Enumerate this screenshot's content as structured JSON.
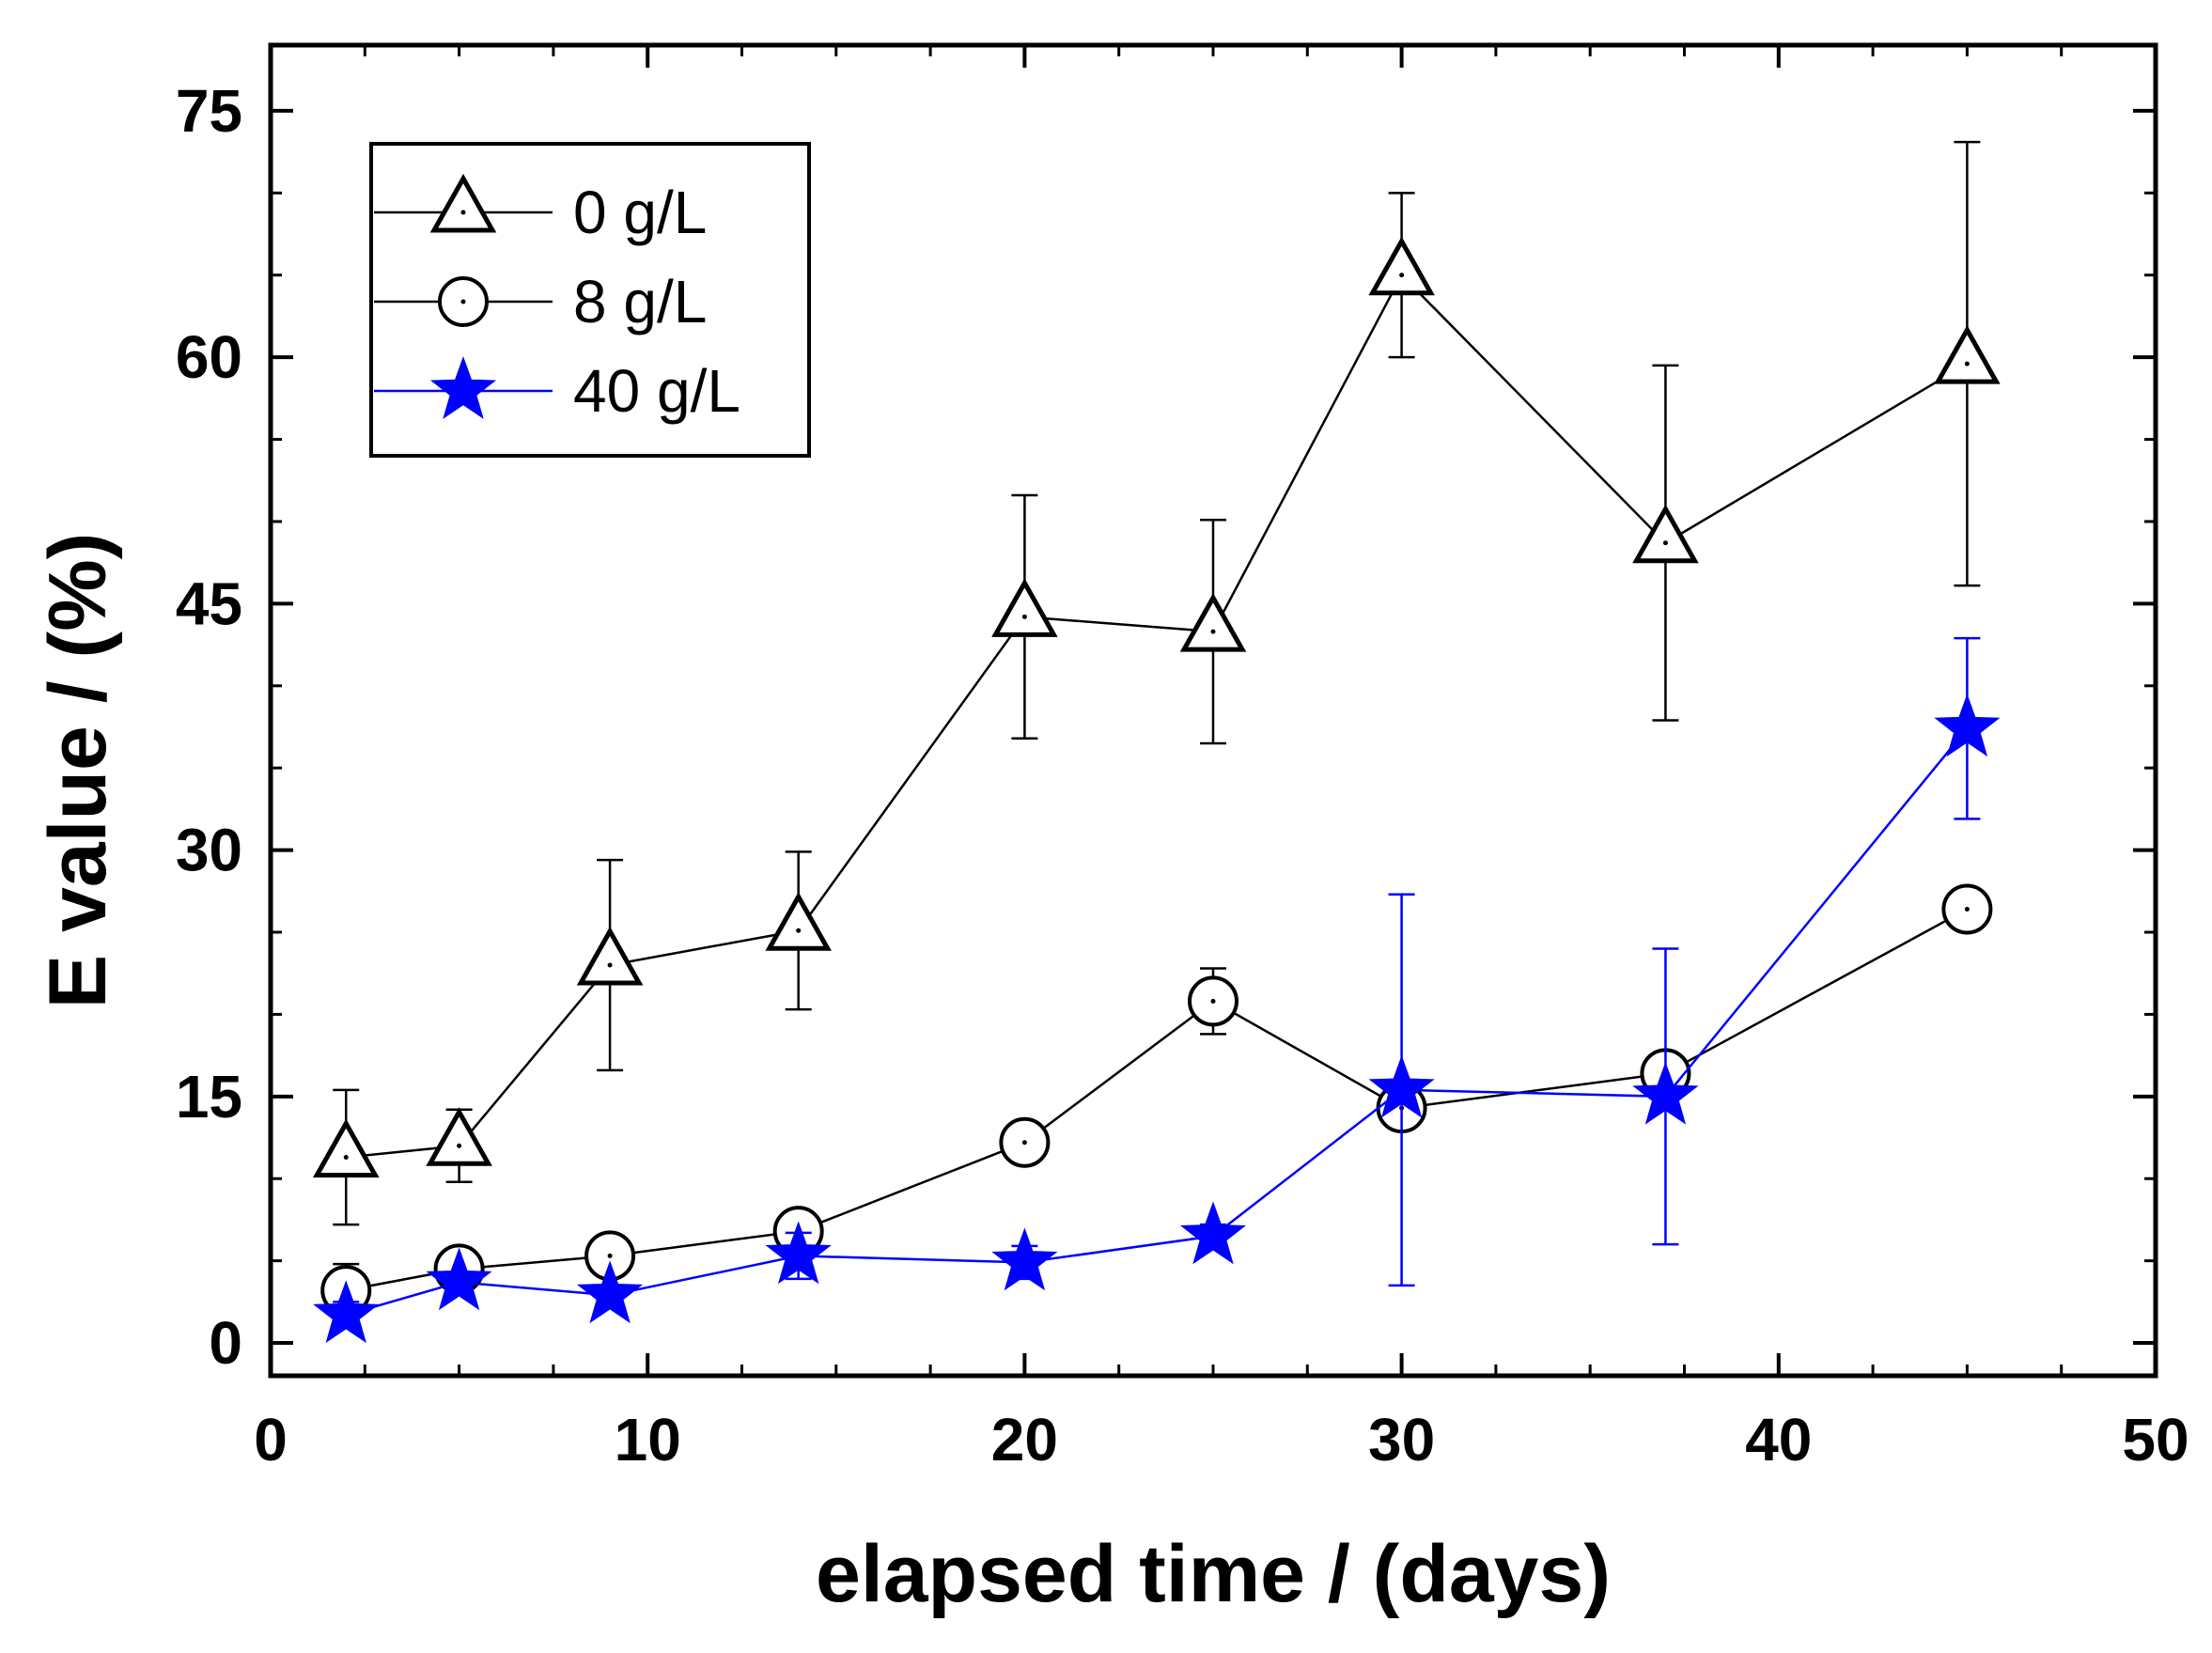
{
  "chart_data": {
    "type": "line",
    "title": "",
    "xlabel": "elapsed time / (days)",
    "ylabel": "E value / (%)",
    "xlim": [
      0,
      50
    ],
    "ylim": [
      -2,
      79
    ],
    "x_ticks": [
      0,
      10,
      20,
      30,
      40,
      50
    ],
    "y_ticks": [
      0,
      15,
      30,
      45,
      60,
      75
    ],
    "x_minor_step": 2.5,
    "y_minor_step": 5,
    "grid": false,
    "legend_position": "top-left",
    "x": [
      2,
      5,
      9,
      14,
      20,
      25,
      30,
      37,
      45
    ],
    "series": [
      {
        "name": "0 g/L",
        "marker": "triangle",
        "color": "#000000",
        "values": [
          11.3,
          12.0,
          23.0,
          25.1,
          44.2,
          43.3,
          65.0,
          48.7,
          59.6
        ],
        "error": [
          4.1,
          2.2,
          6.4,
          4.8,
          7.4,
          6.8,
          5.0,
          10.8,
          13.5
        ]
      },
      {
        "name": "8 g/L",
        "marker": "circle",
        "color": "#000000",
        "values": [
          3.2,
          4.5,
          5.3,
          6.8,
          12.2,
          20.8,
          14.3,
          16.4,
          26.4
        ],
        "error": [
          1.6,
          0.5,
          0.6,
          0.5,
          1.1,
          2.0,
          0.8,
          0.5,
          1.0
        ]
      },
      {
        "name": "40 g/L",
        "marker": "star",
        "color": "#0000ff",
        "values": [
          1.7,
          3.7,
          2.9,
          5.3,
          4.9,
          6.5,
          15.4,
          15.0,
          37.4
        ],
        "error": [
          0.8,
          0.6,
          0.6,
          1.4,
          1.0,
          0.7,
          11.9,
          9.0,
          5.5
        ]
      }
    ]
  }
}
